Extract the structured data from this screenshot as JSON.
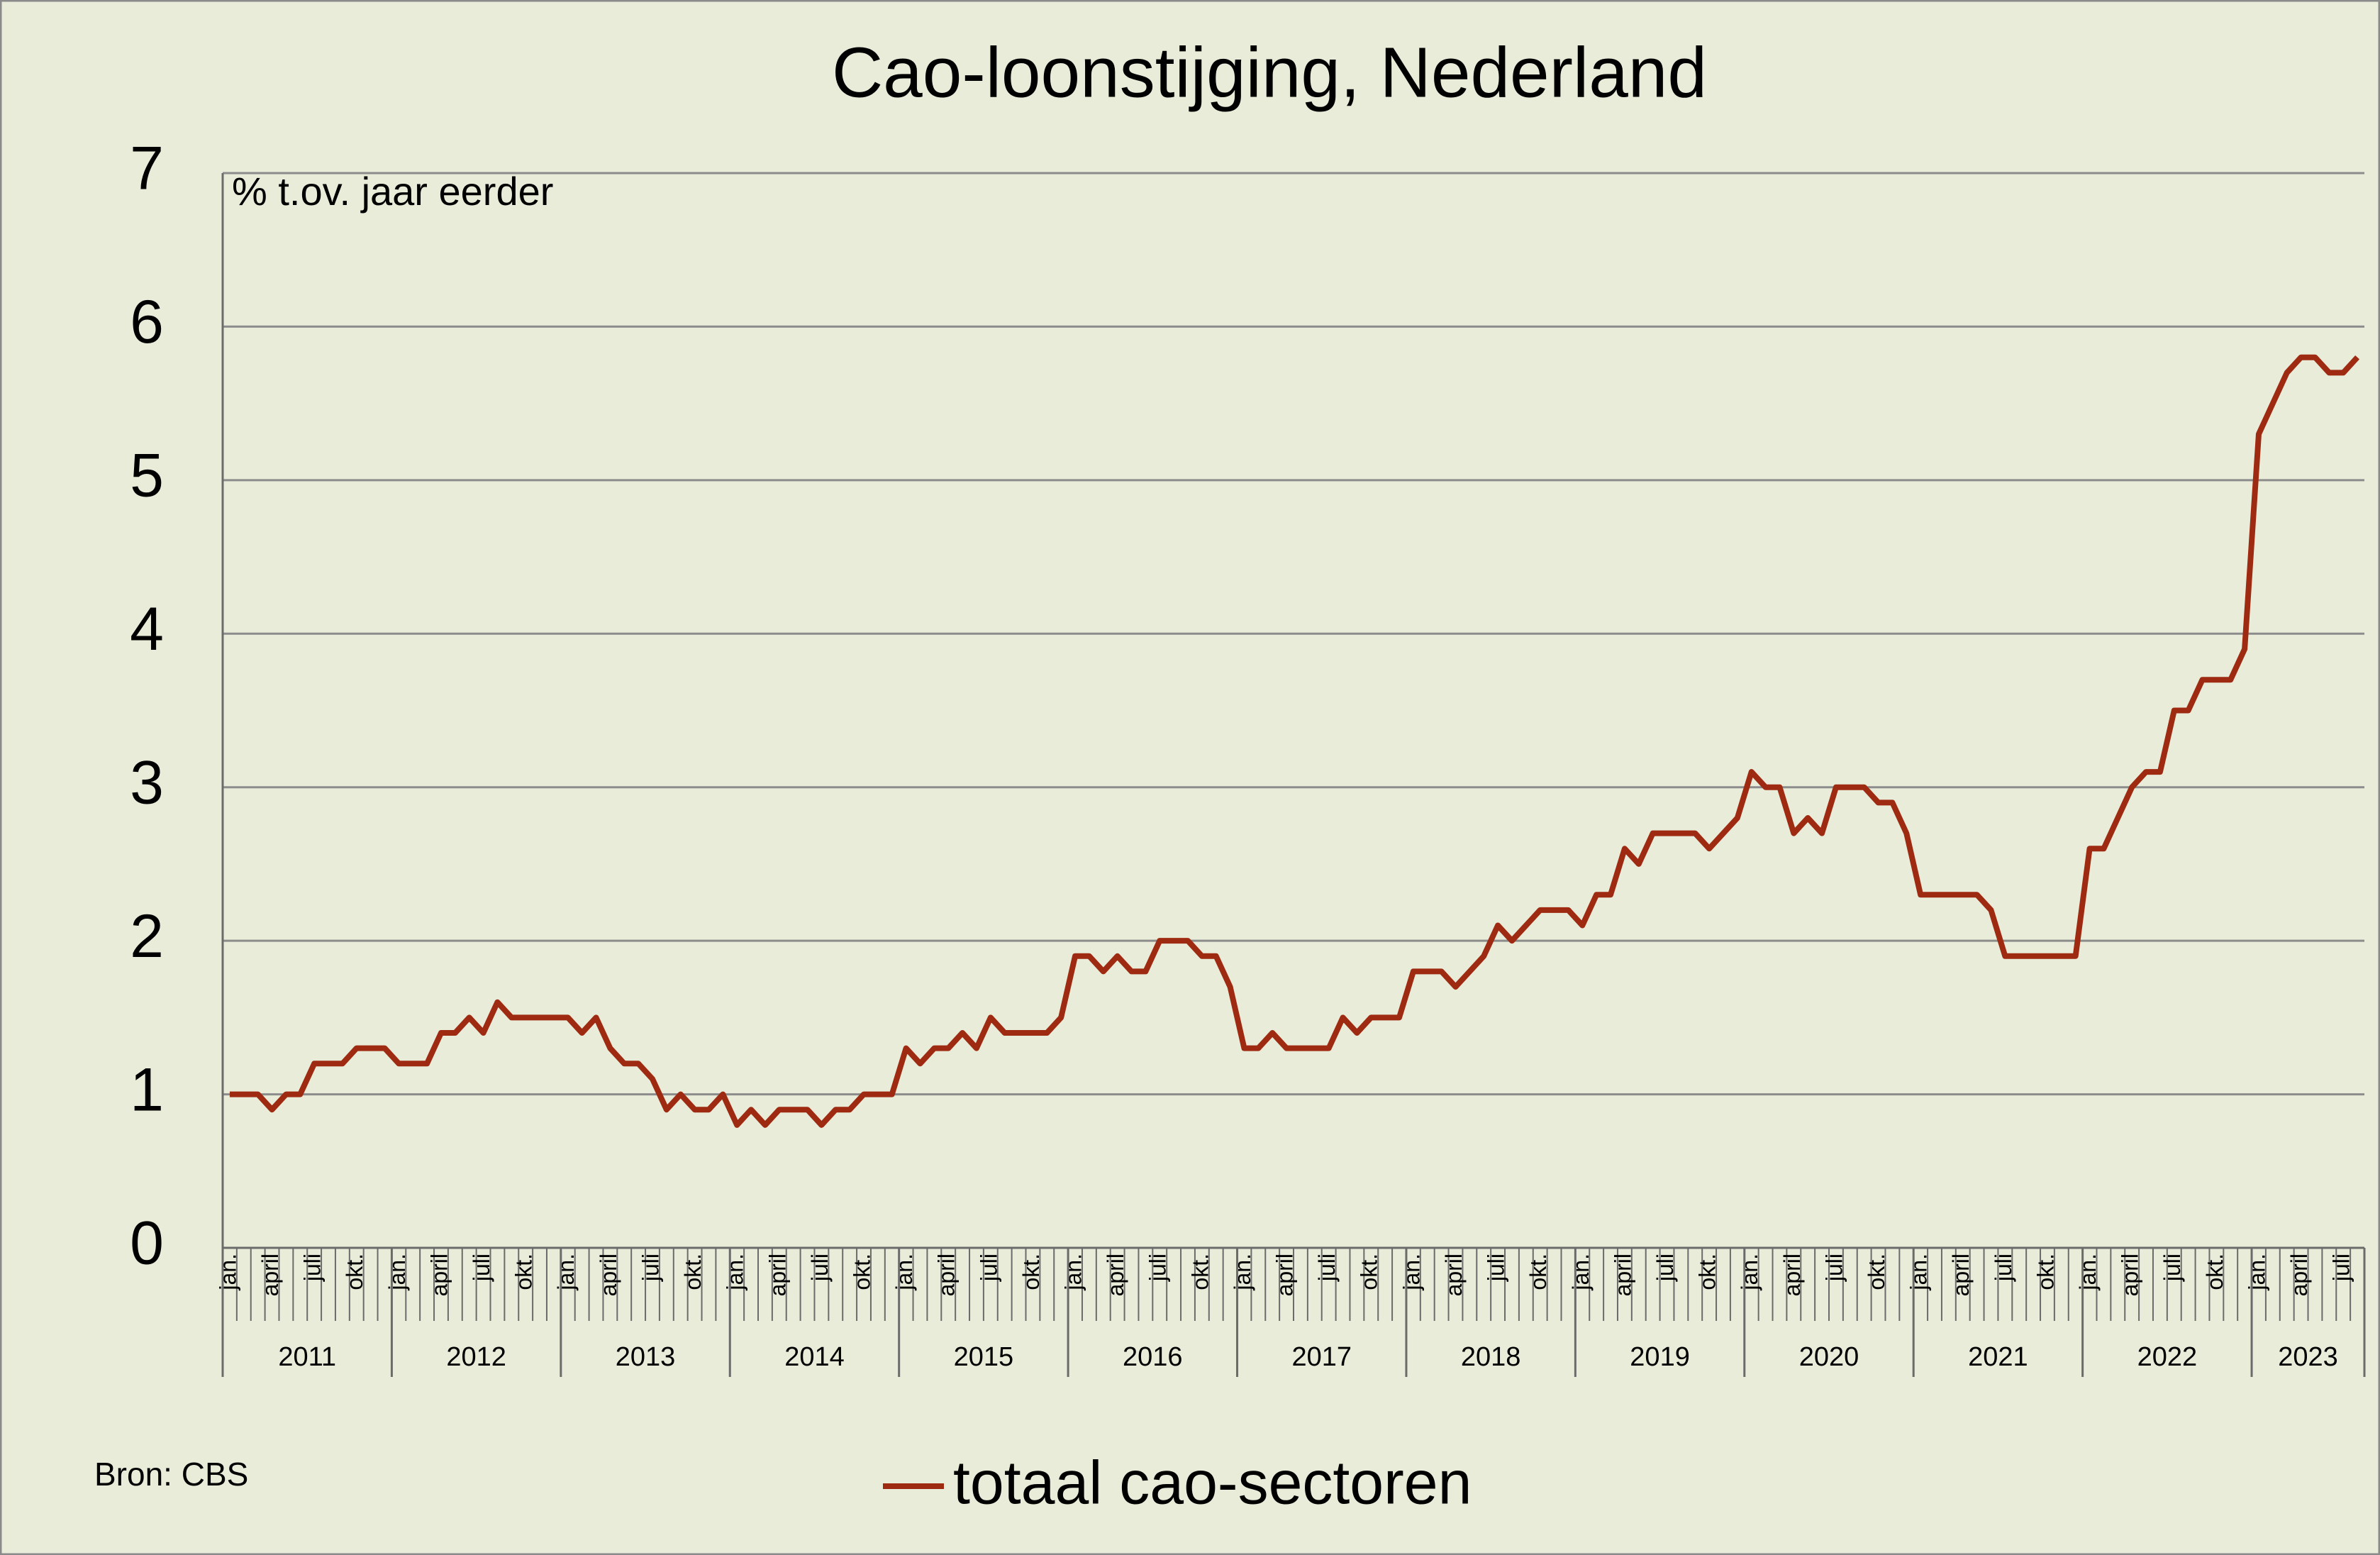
{
  "chart_data": {
    "type": "line",
    "title": "Cao-loonstijging, Nederland",
    "y_label": "% t.ov. jaar eerder",
    "source": "Bron: CBS",
    "categories": [
      "jan.",
      null,
      null,
      "april",
      null,
      null,
      "juli",
      null,
      null,
      "okt.",
      null,
      null,
      "jan.",
      null,
      null,
      "april",
      null,
      null,
      "juli",
      null,
      null,
      "okt.",
      null,
      null,
      "jan.",
      null,
      null,
      "april",
      null,
      null,
      "juli",
      null,
      null,
      "okt.",
      null,
      null,
      "jan.",
      null,
      null,
      "april",
      null,
      null,
      "juli",
      null,
      null,
      "okt.",
      null,
      null,
      "jan.",
      null,
      null,
      "april",
      null,
      null,
      "juli",
      null,
      null,
      "okt.",
      null,
      null,
      "jan.",
      null,
      null,
      "april",
      null,
      null,
      "juli",
      null,
      null,
      "okt.",
      null,
      null,
      "jan.",
      null,
      null,
      "april",
      null,
      null,
      "juli",
      null,
      null,
      "okt.",
      null,
      null,
      "jan.",
      null,
      null,
      "april",
      null,
      null,
      "juli",
      null,
      null,
      "okt.",
      null,
      null,
      "jan.",
      null,
      null,
      "april",
      null,
      null,
      "juli",
      null,
      null,
      "okt.",
      null,
      null,
      "jan.",
      null,
      null,
      "april",
      null,
      null,
      "juli",
      null,
      null,
      "okt.",
      null,
      null,
      "jan.",
      null,
      null,
      "april",
      null,
      null,
      "juli",
      null,
      null,
      "okt.",
      null,
      null,
      "jan.",
      null,
      null,
      "april",
      null,
      null,
      "juli",
      null,
      null,
      "okt.",
      null,
      null,
      "jan.",
      null,
      null,
      "april",
      null,
      null,
      "juli",
      null
    ],
    "years": [
      "2011",
      "2012",
      "2013",
      "2014",
      "2015",
      "2016",
      "2017",
      "2018",
      "2019",
      "2020",
      "2021",
      "2022",
      "2023"
    ],
    "series": [
      {
        "name": "totaal cao-sectoren",
        "color": "#9e2a12",
        "values": [
          1.0,
          1.0,
          1.0,
          0.9,
          1.0,
          1.0,
          1.2,
          1.2,
          1.2,
          1.3,
          1.3,
          1.3,
          1.2,
          1.2,
          1.2,
          1.4,
          1.4,
          1.5,
          1.4,
          1.6,
          1.5,
          1.5,
          1.5,
          1.5,
          1.5,
          1.4,
          1.5,
          1.3,
          1.2,
          1.2,
          1.1,
          0.9,
          1.0,
          0.9,
          0.9,
          1.0,
          0.8,
          0.9,
          0.8,
          0.9,
          0.9,
          0.9,
          0.8,
          0.9,
          0.9,
          1.0,
          1.0,
          1.0,
          1.3,
          1.2,
          1.3,
          1.3,
          1.4,
          1.3,
          1.5,
          1.4,
          1.4,
          1.4,
          1.4,
          1.5,
          1.9,
          1.9,
          1.8,
          1.9,
          1.8,
          1.8,
          2.0,
          2.0,
          2.0,
          1.9,
          1.9,
          1.7,
          1.3,
          1.3,
          1.4,
          1.3,
          1.3,
          1.3,
          1.3,
          1.5,
          1.4,
          1.5,
          1.5,
          1.5,
          1.8,
          1.8,
          1.8,
          1.7,
          1.8,
          1.9,
          2.1,
          2.0,
          2.1,
          2.2,
          2.2,
          2.2,
          2.1,
          2.3,
          2.3,
          2.6,
          2.5,
          2.7,
          2.7,
          2.7,
          2.7,
          2.6,
          2.7,
          2.8,
          3.1,
          3.0,
          3.0,
          2.7,
          2.8,
          2.7,
          3.0,
          3.0,
          3.0,
          2.9,
          2.9,
          2.7,
          2.3,
          2.3,
          2.3,
          2.3,
          2.3,
          2.2,
          1.9,
          1.9,
          1.9,
          1.9,
          1.9,
          1.9,
          2.6,
          2.6,
          2.8,
          3.0,
          3.1,
          3.1,
          3.5,
          3.5,
          3.7,
          3.7,
          3.7,
          3.9,
          5.3,
          5.5,
          5.7,
          5.8,
          5.8,
          5.7,
          5.7,
          5.8
        ]
      }
    ],
    "ylim": [
      0,
      7
    ],
    "yticks": [
      0,
      1,
      2,
      3,
      4,
      5,
      6,
      7
    ],
    "grid": true
  }
}
